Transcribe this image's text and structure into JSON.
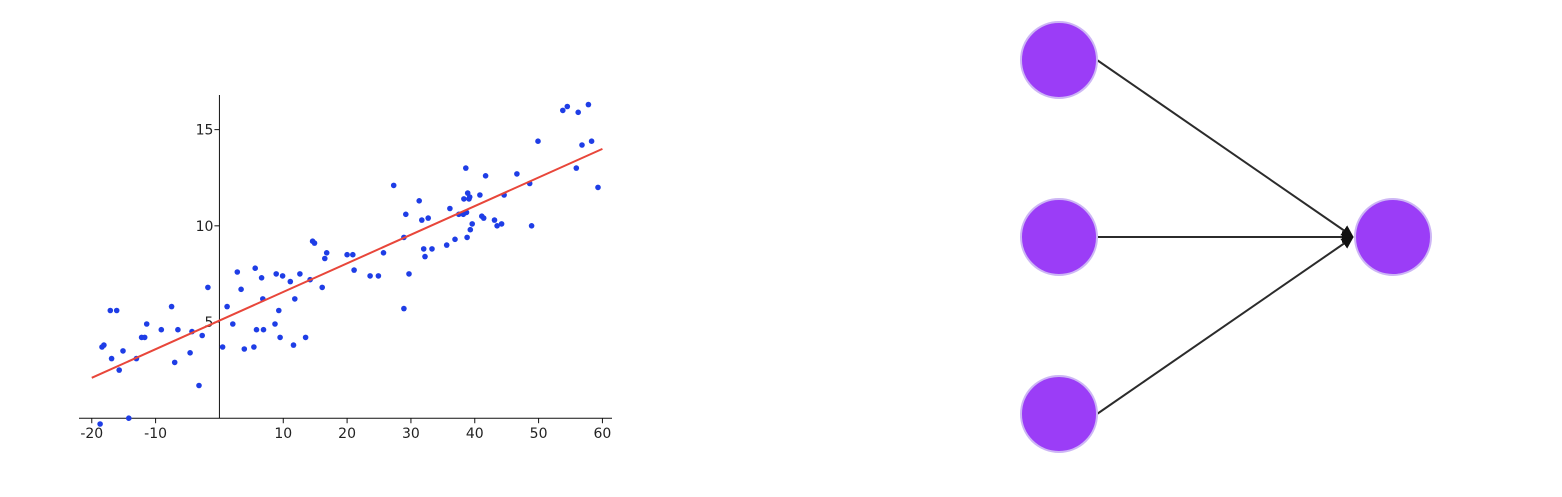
{
  "chart_data": {
    "type": "scatter",
    "title": "",
    "xlabel": "",
    "ylabel": "",
    "xlim": [
      -22,
      61.5
    ],
    "ylim": [
      -0.3,
      16.8
    ],
    "grid": false,
    "x_ticks": [
      -20,
      -10,
      10,
      20,
      30,
      40,
      50,
      60
    ],
    "x_tick_labels": [
      "-20",
      "-10",
      "10",
      "20",
      "30",
      "40",
      "50",
      "60"
    ],
    "y_ticks": [
      5,
      10,
      15
    ],
    "y_tick_labels": [
      "5",
      "10",
      "15"
    ],
    "colors": {
      "points": "#1e3de6",
      "fit_line": "#e8463a",
      "axis": "#111111"
    },
    "fit_line": {
      "x": [
        -20,
        60
      ],
      "y": [
        2.1,
        14.0
      ]
    },
    "points": [
      [
        -18.7,
        -0.3
      ],
      [
        -18.4,
        3.7
      ],
      [
        -18.1,
        3.8
      ],
      [
        -17.1,
        5.6
      ],
      [
        -16.9,
        3.1
      ],
      [
        -16.1,
        5.6
      ],
      [
        -15.7,
        2.5
      ],
      [
        -15.1,
        3.5
      ],
      [
        -14.2,
        0.0
      ],
      [
        -13.0,
        3.1
      ],
      [
        -12.2,
        4.2
      ],
      [
        -11.7,
        4.2
      ],
      [
        -11.4,
        4.9
      ],
      [
        -9.1,
        4.6
      ],
      [
        -7.5,
        5.8
      ],
      [
        -7.0,
        2.9
      ],
      [
        -6.5,
        4.6
      ],
      [
        -4.6,
        3.4
      ],
      [
        -4.3,
        4.5
      ],
      [
        -3.2,
        1.7
      ],
      [
        -2.7,
        4.3
      ],
      [
        -1.8,
        6.8
      ],
      [
        0.5,
        3.7
      ],
      [
        1.2,
        5.8
      ],
      [
        2.1,
        4.9
      ],
      [
        2.8,
        7.6
      ],
      [
        3.4,
        6.7
      ],
      [
        3.9,
        3.6
      ],
      [
        5.4,
        3.7
      ],
      [
        5.6,
        7.8
      ],
      [
        5.8,
        4.6
      ],
      [
        6.6,
        7.3
      ],
      [
        6.8,
        6.2
      ],
      [
        6.9,
        4.6
      ],
      [
        8.7,
        4.9
      ],
      [
        8.9,
        7.5
      ],
      [
        9.3,
        5.6
      ],
      [
        9.5,
        4.2
      ],
      [
        9.9,
        7.4
      ],
      [
        11.1,
        7.1
      ],
      [
        11.6,
        3.8
      ],
      [
        11.8,
        6.2
      ],
      [
        12.6,
        7.5
      ],
      [
        13.5,
        4.2
      ],
      [
        14.2,
        7.2
      ],
      [
        14.6,
        9.2
      ],
      [
        14.9,
        9.1
      ],
      [
        16.1,
        6.8
      ],
      [
        16.5,
        8.3
      ],
      [
        16.8,
        8.6
      ],
      [
        20.0,
        8.5
      ],
      [
        20.9,
        8.5
      ],
      [
        21.1,
        7.7
      ],
      [
        23.6,
        7.4
      ],
      [
        24.9,
        7.4
      ],
      [
        25.7,
        8.6
      ],
      [
        27.3,
        12.1
      ],
      [
        28.9,
        5.7
      ],
      [
        28.9,
        9.4
      ],
      [
        29.2,
        10.6
      ],
      [
        29.7,
        7.5
      ],
      [
        31.3,
        11.3
      ],
      [
        31.7,
        10.3
      ],
      [
        32.0,
        8.8
      ],
      [
        32.2,
        8.4
      ],
      [
        32.7,
        10.4
      ],
      [
        33.3,
        8.8
      ],
      [
        35.6,
        9.0
      ],
      [
        36.1,
        10.9
      ],
      [
        36.9,
        9.3
      ],
      [
        37.5,
        10.6
      ],
      [
        38.2,
        10.6
      ],
      [
        38.3,
        11.4
      ],
      [
        38.6,
        13.0
      ],
      [
        38.7,
        10.7
      ],
      [
        38.8,
        9.4
      ],
      [
        38.9,
        11.7
      ],
      [
        39.1,
        11.4
      ],
      [
        39.2,
        11.5
      ],
      [
        39.3,
        9.8
      ],
      [
        39.6,
        10.1
      ],
      [
        40.8,
        11.6
      ],
      [
        41.1,
        10.5
      ],
      [
        41.4,
        10.4
      ],
      [
        41.7,
        12.6
      ],
      [
        43.1,
        10.3
      ],
      [
        43.5,
        10.0
      ],
      [
        44.2,
        10.1
      ],
      [
        44.6,
        11.6
      ],
      [
        46.6,
        12.7
      ],
      [
        48.6,
        12.2
      ],
      [
        48.9,
        10.0
      ],
      [
        49.9,
        14.4
      ],
      [
        53.8,
        16.0
      ],
      [
        54.5,
        16.2
      ],
      [
        55.9,
        13.0
      ],
      [
        56.2,
        15.9
      ],
      [
        56.8,
        14.2
      ],
      [
        57.8,
        16.3
      ],
      [
        58.3,
        14.4
      ],
      [
        59.3,
        12.0
      ]
    ]
  },
  "diagram": {
    "node_color": "#9b3df7",
    "edge_color": "#2b2b2b",
    "inputs": 3,
    "outputs": 1
  }
}
